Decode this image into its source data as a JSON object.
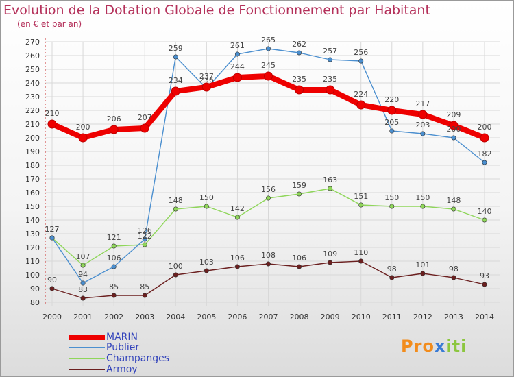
{
  "title": "Evolution de la Dotation Globale de Fonctionnement par Habitant",
  "subtitle": "(en € et par an)",
  "logo": {
    "text": "Proxiti",
    "letters": [
      {
        "ch": "P",
        "color": "#f28c1c"
      },
      {
        "ch": "r",
        "color": "#f28c1c"
      },
      {
        "ch": "o",
        "color": "#f28c1c"
      },
      {
        "ch": "x",
        "color": "#3a7bd5"
      },
      {
        "ch": "i",
        "color": "#8cc63f"
      },
      {
        "ch": "t",
        "color": "#8cc63f"
      },
      {
        "ch": "i",
        "color": "#8cc63f"
      }
    ]
  },
  "chart_data": {
    "type": "line",
    "title": "Evolution de la Dotation Globale de Fonctionnement par Habitant",
    "subtitle": "(en € et par an)",
    "x": [
      "2000",
      "2001",
      "2002",
      "2003",
      "2004",
      "2005",
      "2006",
      "2007",
      "2008",
      "2009",
      "2010",
      "2011",
      "2012",
      "2013",
      "2014"
    ],
    "ylim": [
      80,
      270
    ],
    "yticks": [
      80,
      90,
      100,
      110,
      120,
      130,
      140,
      150,
      160,
      170,
      180,
      190,
      200,
      210,
      220,
      230,
      240,
      250,
      260,
      270
    ],
    "grid": true,
    "legend_position": "bottom-left",
    "series": [
      {
        "name": "MARIN",
        "color": "#ee0000",
        "values": [
          210,
          200,
          206,
          207,
          234,
          237,
          244,
          245,
          235,
          235,
          224,
          220,
          217,
          209,
          200
        ]
      },
      {
        "name": "Publier",
        "color": "#4b8fcf",
        "values": [
          127,
          94,
          106,
          126,
          259,
          236,
          261,
          265,
          262,
          257,
          256,
          205,
          203,
          200,
          182
        ]
      },
      {
        "name": "Champanges",
        "color": "#8fd65a",
        "values": [
          127,
          107,
          121,
          122,
          148,
          150,
          142,
          156,
          159,
          163,
          151,
          150,
          150,
          148,
          140
        ]
      },
      {
        "name": "Armoy",
        "color": "#6b1f1f",
        "values": [
          90,
          83,
          85,
          85,
          100,
          103,
          106,
          108,
          106,
          109,
          110,
          98,
          101,
          98,
          93
        ]
      }
    ]
  }
}
